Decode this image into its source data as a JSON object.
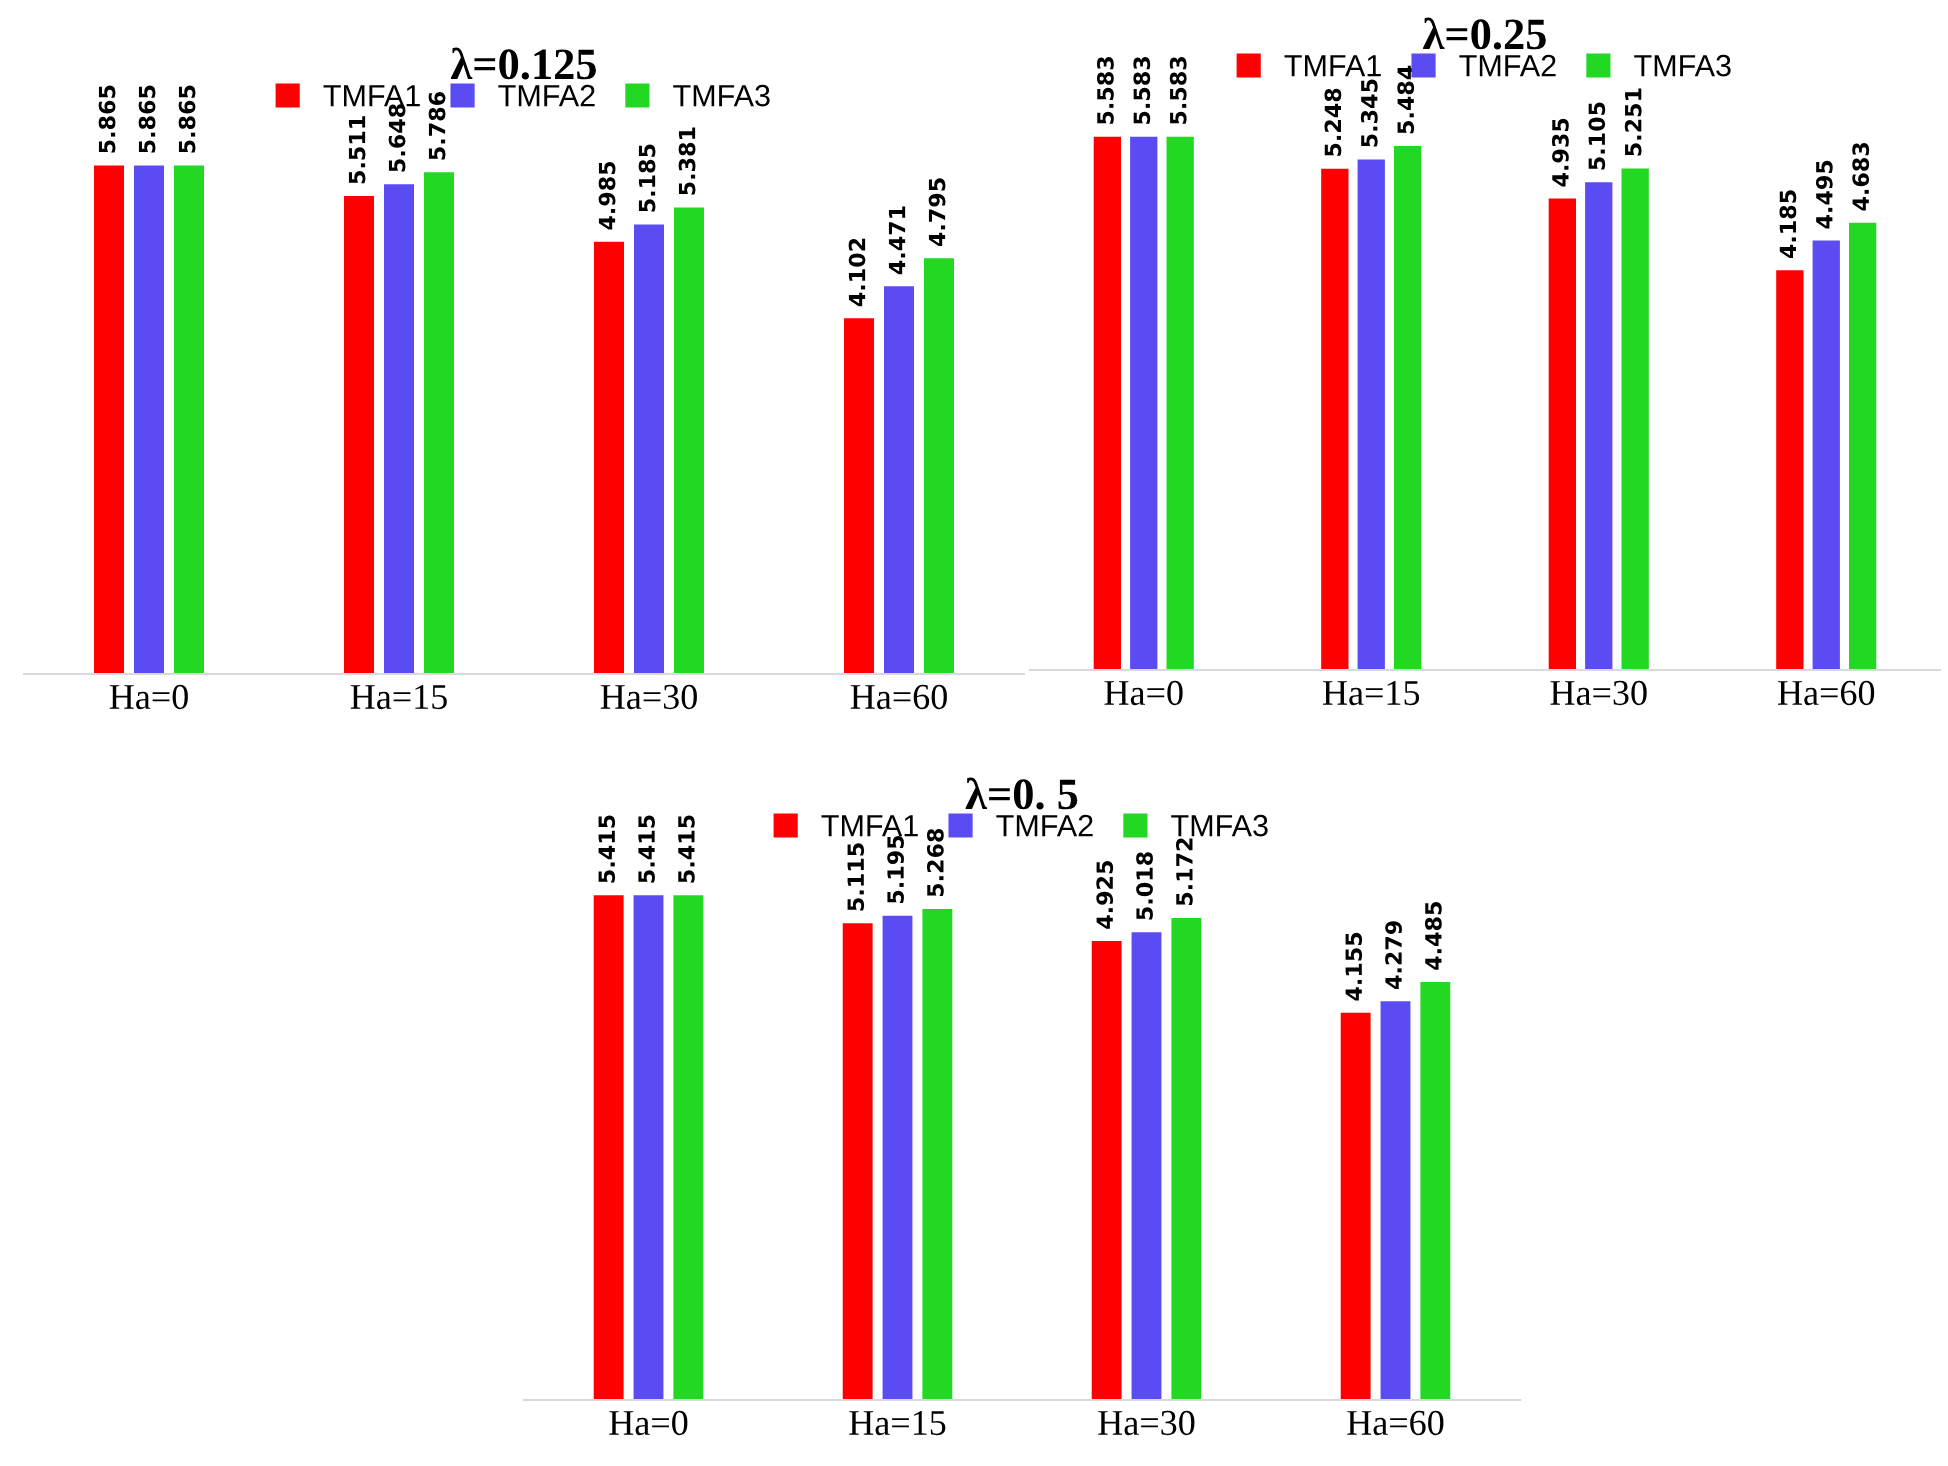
{
  "chart_data": [
    {
      "type": "bar",
      "title": "λ=0.125",
      "categories": [
        "Ha=0",
        "Ha=15",
        "Ha=30",
        "Ha=60"
      ],
      "data_labels": true,
      "legend": "top",
      "series": [
        {
          "name": "TMFA1",
          "color": "#ff0000",
          "values": [
            5.865,
            5.511,
            4.985,
            4.102
          ]
        },
        {
          "name": "TMFA2",
          "color": "#5a4cf2",
          "values": [
            5.865,
            5.648,
            5.185,
            4.471
          ]
        },
        {
          "name": "TMFA3",
          "color": "#22d822",
          "values": [
            5.865,
            5.786,
            5.381,
            4.795
          ]
        }
      ]
    },
    {
      "type": "bar",
      "title": "λ=0.25",
      "categories": [
        "Ha=0",
        "Ha=15",
        "Ha=30",
        "Ha=60"
      ],
      "data_labels": true,
      "legend": "top",
      "series": [
        {
          "name": "TMFA1",
          "color": "#ff0000",
          "values": [
            5.583,
            5.248,
            4.935,
            4.185
          ]
        },
        {
          "name": "TMFA2",
          "color": "#5a4cf2",
          "values": [
            5.583,
            5.345,
            5.105,
            4.495
          ]
        },
        {
          "name": "TMFA3",
          "color": "#22d822",
          "values": [
            5.583,
            5.484,
            5.251,
            4.683
          ]
        }
      ]
    },
    {
      "type": "bar",
      "title": "λ=0. 5",
      "categories": [
        "Ha=0",
        "Ha=15",
        "Ha=30",
        "Ha=60"
      ],
      "data_labels": true,
      "legend": "top",
      "series": [
        {
          "name": "TMFA1",
          "color": "#ff0000",
          "values": [
            5.415,
            5.115,
            4.925,
            4.155
          ]
        },
        {
          "name": "TMFA2",
          "color": "#5a4cf2",
          "values": [
            5.415,
            5.195,
            5.018,
            4.279
          ]
        },
        {
          "name": "TMFA3",
          "color": "#22d822",
          "values": [
            5.415,
            5.268,
            5.172,
            4.485
          ]
        }
      ]
    }
  ]
}
